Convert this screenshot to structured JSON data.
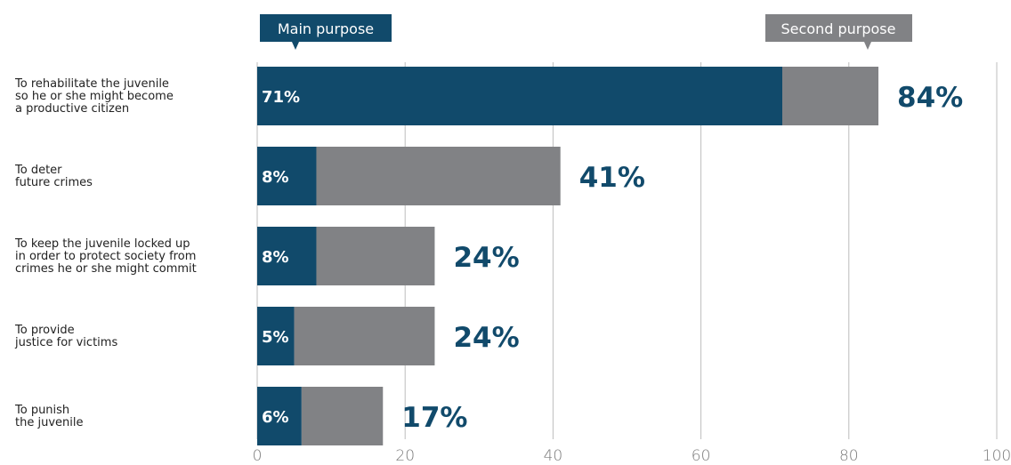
{
  "colors": {
    "main": "#114a6b",
    "second": "#818285",
    "grid": "#bdbdbd",
    "total": "#114a6b"
  },
  "legend": {
    "main": "Main purpose",
    "second": "Second purpose"
  },
  "chart_data": {
    "type": "bar",
    "orientation": "horizontal",
    "stacked": true,
    "xlim": [
      0,
      100
    ],
    "ticks": [
      0,
      20,
      40,
      60,
      80,
      100
    ],
    "categories": [
      [
        "To rehabilitate the juvenile",
        "so he or she might become",
        "a productive citizen"
      ],
      [
        "To deter",
        "future crimes"
      ],
      [
        "To keep the juvenile locked up",
        "in order to protect society from",
        "crimes he or she might commit"
      ],
      [
        "To provide",
        "justice for victims"
      ],
      [
        "To punish",
        "the juvenile"
      ]
    ],
    "series": [
      {
        "name": "Main purpose",
        "values": [
          71,
          8,
          8,
          5,
          6
        ]
      },
      {
        "name": "Second purpose",
        "values": [
          13,
          33,
          16,
          19,
          11
        ]
      }
    ],
    "main_labels": [
      "71%",
      "8%",
      "8%",
      "5%",
      "6%"
    ],
    "totals": [
      84,
      41,
      24,
      24,
      17
    ],
    "total_labels": [
      "84%",
      "41%",
      "24%",
      "24%",
      "17%"
    ],
    "grid": true,
    "legend_position": "top"
  }
}
